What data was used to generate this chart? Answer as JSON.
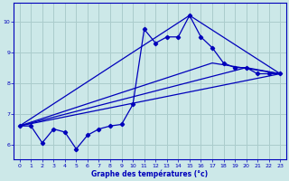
{
  "xlabel": "Graphe des températures (°c)",
  "bg_color": "#cce8e8",
  "line_color": "#0000bb",
  "grid_color": "#aacccc",
  "xlim_min": -0.5,
  "xlim_max": 23.5,
  "ylim_min": 5.5,
  "ylim_max": 10.6,
  "xticks": [
    0,
    1,
    2,
    3,
    4,
    5,
    6,
    7,
    8,
    9,
    10,
    11,
    12,
    13,
    14,
    15,
    16,
    17,
    18,
    19,
    20,
    21,
    22,
    23
  ],
  "yticks": [
    6,
    7,
    8,
    9,
    10
  ],
  "main_x": [
    0,
    1,
    2,
    3,
    4,
    5,
    6,
    7,
    8,
    9,
    10,
    11,
    12,
    13,
    14,
    15,
    16,
    17,
    18,
    19,
    20,
    21,
    22,
    23
  ],
  "main_y": [
    6.6,
    6.6,
    6.05,
    6.5,
    6.4,
    5.85,
    6.3,
    6.5,
    6.6,
    6.65,
    7.3,
    9.75,
    9.3,
    9.5,
    9.5,
    10.2,
    9.5,
    9.15,
    8.65,
    8.5,
    8.5,
    8.3,
    8.3,
    8.3
  ],
  "trend1_x": [
    0,
    23
  ],
  "trend1_y": [
    6.6,
    8.3
  ],
  "trend2_x": [
    0,
    20,
    23
  ],
  "trend2_y": [
    6.6,
    8.5,
    8.3
  ],
  "trend3_x": [
    0,
    17,
    23
  ],
  "trend3_y": [
    6.6,
    8.65,
    8.3
  ],
  "trend4_x": [
    0,
    15,
    23
  ],
  "trend4_y": [
    6.6,
    10.2,
    8.3
  ]
}
